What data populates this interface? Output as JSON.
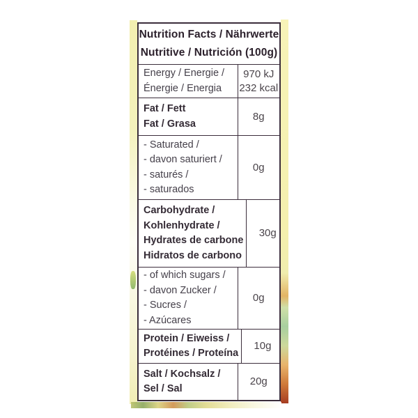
{
  "label": {
    "header": {
      "line1": "Nutrition Facts / Nährwerte",
      "line2": "Nutritive / Nutrición (100g)"
    },
    "rows": [
      {
        "name": "energy",
        "lines": [
          "Energy / Energie /",
          "Énergie / Energia"
        ],
        "value_lines": [
          "970 kJ",
          "232 kcal"
        ]
      },
      {
        "name": "fat",
        "lines": [
          "Fat / Fett",
          "Fat / Grasa"
        ],
        "value": "8g"
      },
      {
        "name": "saturated",
        "lines": [
          "- Saturated /",
          "- davon saturiert /",
          "- saturés /",
          "- saturados"
        ],
        "value": "0g"
      },
      {
        "name": "carbohydrate",
        "lines": [
          "Carbohydrate /",
          "Kohlenhydrate /",
          "Hydrates de carbone",
          "Hidratos de carbono"
        ],
        "value": "30g"
      },
      {
        "name": "sugars",
        "lines": [
          "- of which sugars /",
          "- davon Zucker /",
          "- Sucres /",
          "- Azúcares"
        ],
        "value": "0g"
      },
      {
        "name": "protein",
        "lines": [
          "Protein / Eiweiss /",
          "Protéines / Proteína"
        ],
        "value": "10g"
      },
      {
        "name": "salt",
        "lines": [
          "Salt / Kochsalz /",
          "Sel / Sal"
        ],
        "value": "20g"
      }
    ],
    "colors": {
      "table_border": "#3b2d3b",
      "header_text": "#2c212c",
      "bold_text": "#342b35",
      "regular_text": "#45404a",
      "value_text": "#4a444a",
      "strip_yellow": "#f3efb0",
      "strip_green": "#a8cf9f",
      "strip_orange": "#e8b36b",
      "strip_red": "#a63d22"
    }
  }
}
